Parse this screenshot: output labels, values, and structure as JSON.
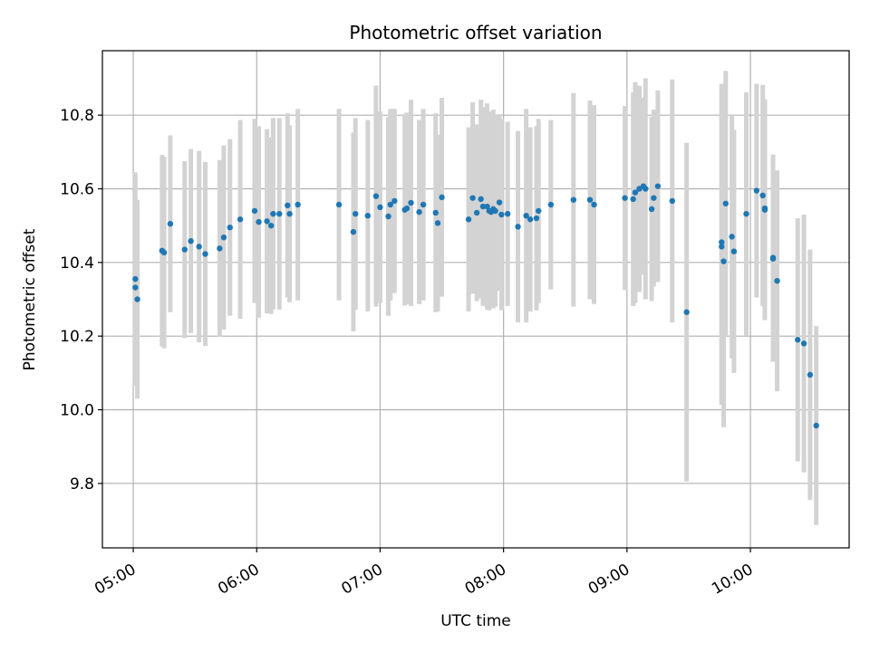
{
  "chart_data": {
    "type": "scatter",
    "title": "Photometric offset variation",
    "xlabel": "UTC time",
    "ylabel": "Photometric offset",
    "x_ticks": [
      "05:00",
      "06:00",
      "07:00",
      "08:00",
      "09:00",
      "10:00"
    ],
    "y_ticks": [
      "9.8",
      "10.0",
      "10.2",
      "10.4",
      "10.6",
      "10.8"
    ],
    "xlim": [
      "04:45",
      "10:48"
    ],
    "ylim": [
      9.625,
      10.975
    ],
    "grid": true,
    "legend": "none",
    "colors": {
      "point": "#1f77b4",
      "errorbar": "#d3d3d3",
      "grid": "#b0b0b0"
    },
    "series": [
      {
        "x": [
          "05:01",
          "05:01",
          "05:02",
          "05:14",
          "05:15",
          "05:18",
          "05:25",
          "05:28",
          "05:32",
          "05:35",
          "05:42",
          "05:44",
          "05:47",
          "05:52",
          "05:59",
          "06:01",
          "06:05",
          "06:07",
          "06:08",
          "06:11",
          "06:15",
          "06:16",
          "06:20",
          "06:40",
          "06:47",
          "06:48",
          "06:54",
          "06:58",
          "07:00",
          "07:04",
          "07:05",
          "07:07",
          "07:12",
          "07:13",
          "07:15",
          "07:19",
          "07:21",
          "07:27",
          "07:28",
          "07:30",
          "07:43",
          "07:45",
          "07:47",
          "07:49",
          "07:50",
          "07:52",
          "07:53",
          "07:54",
          "07:55",
          "07:56",
          "07:58",
          "07:59",
          "08:02",
          "08:07",
          "08:11",
          "08:13",
          "08:16",
          "08:17",
          "08:23",
          "08:34",
          "08:42",
          "08:44",
          "08:59",
          "09:03",
          "09:04",
          "09:06",
          "09:08",
          "09:09",
          "09:12",
          "09:13",
          "09:15",
          "09:22",
          "09:29",
          "09:46",
          "09:46",
          "09:47",
          "09:48",
          "09:51",
          "09:52",
          "09:58",
          "10:03",
          "10:06",
          "10:07",
          "10:07",
          "10:11",
          "10:11",
          "10:13",
          "10:23",
          "10:26",
          "10:29",
          "10:32"
        ],
        "y": [
          10.355,
          10.332,
          10.3,
          10.432,
          10.427,
          10.505,
          10.435,
          10.458,
          10.443,
          10.423,
          10.438,
          10.468,
          10.495,
          10.517,
          10.54,
          10.51,
          10.512,
          10.5,
          10.532,
          10.532,
          10.555,
          10.532,
          10.557,
          10.557,
          10.483,
          10.532,
          10.527,
          10.58,
          10.55,
          10.525,
          10.557,
          10.567,
          10.543,
          10.547,
          10.562,
          10.537,
          10.557,
          10.535,
          10.507,
          10.577,
          10.517,
          10.575,
          10.535,
          10.572,
          10.552,
          10.552,
          10.54,
          10.537,
          10.545,
          10.54,
          10.563,
          10.53,
          10.532,
          10.497,
          10.527,
          10.517,
          10.52,
          10.54,
          10.557,
          10.57,
          10.57,
          10.557,
          10.575,
          10.572,
          10.59,
          10.6,
          10.607,
          10.6,
          10.545,
          10.575,
          10.607,
          10.567,
          10.265,
          10.455,
          10.443,
          10.403,
          10.56,
          10.47,
          10.43,
          10.532,
          10.595,
          10.582,
          10.543,
          10.547,
          10.41,
          10.413,
          10.35,
          10.19,
          10.18,
          10.095,
          9.957
        ],
        "err": [
          0.29,
          0.24,
          0.27,
          0.26,
          0.26,
          0.24,
          0.24,
          0.25,
          0.26,
          0.25,
          0.24,
          0.25,
          0.24,
          0.27,
          0.25,
          0.26,
          0.25,
          0.24,
          0.26,
          0.26,
          0.25,
          0.24,
          0.26,
          0.26,
          0.27,
          0.26,
          0.26,
          0.3,
          0.26,
          0.27,
          0.26,
          0.25,
          0.26,
          0.26,
          0.28,
          0.25,
          0.26,
          0.27,
          0.24,
          0.27,
          0.25,
          0.26,
          0.24,
          0.27,
          0.27,
          0.28,
          0.27,
          0.26,
          0.27,
          0.26,
          0.24,
          0.26,
          0.25,
          0.26,
          0.29,
          0.25,
          0.25,
          0.25,
          0.23,
          0.29,
          0.27,
          0.27,
          0.25,
          0.29,
          0.3,
          0.28,
          0.24,
          0.3,
          0.25,
          0.24,
          0.26,
          0.33,
          0.46,
          0.43,
          0.43,
          0.45,
          0.36,
          0.33,
          0.33,
          0.33,
          0.29,
          0.3,
          0.3,
          0.27,
          0.28,
          0.28,
          0.3,
          0.33,
          0.35,
          0.34,
          0.27
        ]
      }
    ]
  }
}
